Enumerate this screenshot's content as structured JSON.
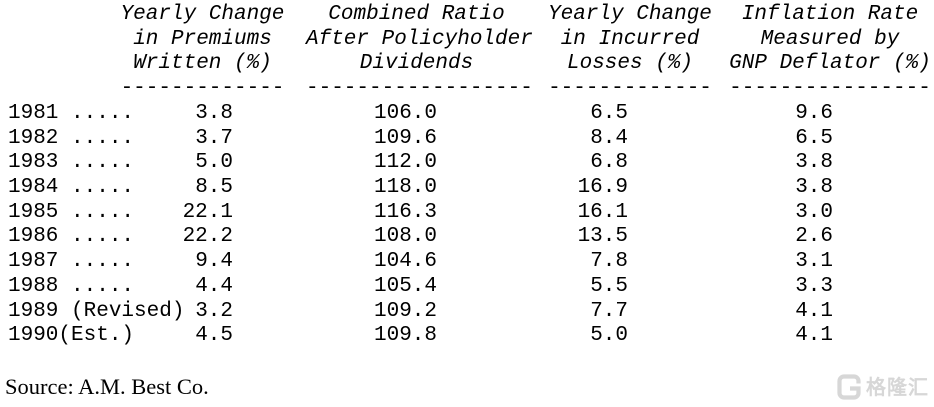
{
  "table": {
    "columns": [
      {
        "id": "premiums_written",
        "header_lines": [
          "Yearly Change",
          "in Premiums",
          "Written (%)"
        ],
        "underline": "-------------"
      },
      {
        "id": "combined_ratio",
        "header_lines": [
          "Combined Ratio",
          "After Policyholder",
          "Dividends"
        ],
        "underline": "------------------"
      },
      {
        "id": "incurred_losses",
        "header_lines": [
          "Yearly Change",
          "in Incurred",
          "Losses (%)"
        ],
        "underline": "-------------"
      },
      {
        "id": "inflation_rate",
        "header_lines": [
          "Inflation Rate",
          "Measured by",
          "GNP Deflator (%)"
        ],
        "underline": "----------------"
      }
    ],
    "rows": [
      {
        "label": "1981 .....",
        "values": [
          "3.8",
          "106.0",
          "6.5",
          "9.6"
        ]
      },
      {
        "label": "1982 .....",
        "values": [
          "3.7",
          "109.6",
          "8.4",
          "6.5"
        ]
      },
      {
        "label": "1983 .....",
        "values": [
          "5.0",
          "112.0",
          "6.8",
          "3.8"
        ]
      },
      {
        "label": "1984 .....",
        "values": [
          "8.5",
          "118.0",
          "16.9",
          "3.8"
        ]
      },
      {
        "label": "1985 .....",
        "values": [
          "22.1",
          "116.3",
          "16.1",
          "3.0"
        ]
      },
      {
        "label": "1986 .....",
        "values": [
          "22.2",
          "108.0",
          "13.5",
          "2.6"
        ]
      },
      {
        "label": "1987 .....",
        "values": [
          "9.4",
          "104.6",
          "7.8",
          "3.1"
        ]
      },
      {
        "label": "1988 .....",
        "values": [
          "4.4",
          "105.4",
          "5.5",
          "3.3"
        ]
      },
      {
        "label": "1989 (Revised)",
        "values": [
          "3.2",
          "109.2",
          "7.7",
          "4.1"
        ]
      },
      {
        "label": "1990(Est.)",
        "values": [
          "4.5",
          "109.8",
          "5.0",
          "4.1"
        ]
      }
    ]
  },
  "source": {
    "text": "Source: A.M. Best Co."
  },
  "watermark": {
    "logo_letter": "G",
    "text": "格隆汇"
  },
  "colors": {
    "text": "#000000",
    "background": "#ffffff",
    "watermark": "#d3d3d3"
  }
}
